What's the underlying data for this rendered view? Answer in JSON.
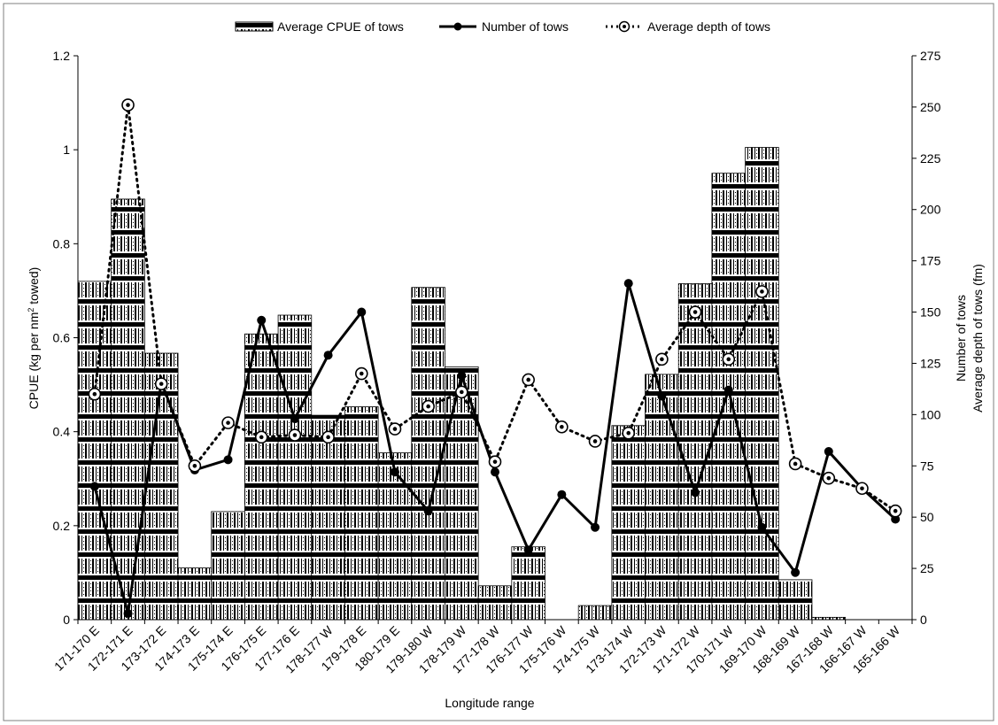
{
  "chart_data": {
    "type": "bar",
    "categories": [
      "171-170 E",
      "172-171 E",
      "173-172 E",
      "174-173 E",
      "175-174 E",
      "176-175 E",
      "177-176 E",
      "178-177 W",
      "179-178 E",
      "180-179 E",
      "179-180 W",
      "178-179 W",
      "177-178 W",
      "176-177 W",
      "175-176 W",
      "174-175 W",
      "173-174 W",
      "172-173 W",
      "171-172 W",
      "170-171 W",
      "169-170 W",
      "168-169 W",
      "167-168 W",
      "166-167 W",
      "165-166 W"
    ],
    "series": [
      {
        "name": "Average CPUE of tows",
        "axis": "left",
        "kind": "bar",
        "values": [
          0.72,
          0.895,
          0.567,
          0.11,
          0.23,
          0.608,
          0.648,
          0.435,
          0.453,
          0.355,
          0.707,
          0.538,
          0.072,
          0.155,
          0.0,
          0.03,
          0.413,
          0.522,
          0.715,
          0.95,
          1.005,
          0.085,
          0.005,
          0.0,
          0.0
        ]
      },
      {
        "name": "Number of tows",
        "axis": "right",
        "kind": "line-solid",
        "values": [
          65,
          3,
          116,
          73,
          78,
          146,
          98,
          129,
          150,
          72,
          53,
          119,
          72,
          34,
          61,
          45,
          164,
          109,
          62,
          112,
          45,
          23,
          82,
          64,
          49
        ]
      },
      {
        "name": "Average depth of tows",
        "axis": "right",
        "kind": "line-dotted",
        "values": [
          110,
          251,
          115,
          75,
          96,
          89,
          90,
          89,
          120,
          93,
          104,
          111,
          77,
          117,
          94,
          87,
          91,
          127,
          150,
          127,
          160,
          76,
          69,
          64,
          53
        ]
      }
    ],
    "xlabel": "Longitude range",
    "ylabel": "CPUE (kg per nm² towed)",
    "y2label_line1": "Number of tows",
    "y2label_line2": "Average depth of tows (fm)",
    "ylim": [
      0,
      1.2
    ],
    "yticks": [
      "0",
      "0.2",
      "0.4",
      "0.6",
      "0.8",
      "1",
      "1.2"
    ],
    "y2lim": [
      0,
      275
    ],
    "y2ticks": [
      "0",
      "25",
      "50",
      "75",
      "100",
      "125",
      "150",
      "175",
      "200",
      "225",
      "250",
      "275"
    ],
    "grid": false,
    "legend_position": "top"
  },
  "colors": {
    "bar_fill": "#000000",
    "line": "#000000",
    "frame": "#7f7f7f"
  }
}
